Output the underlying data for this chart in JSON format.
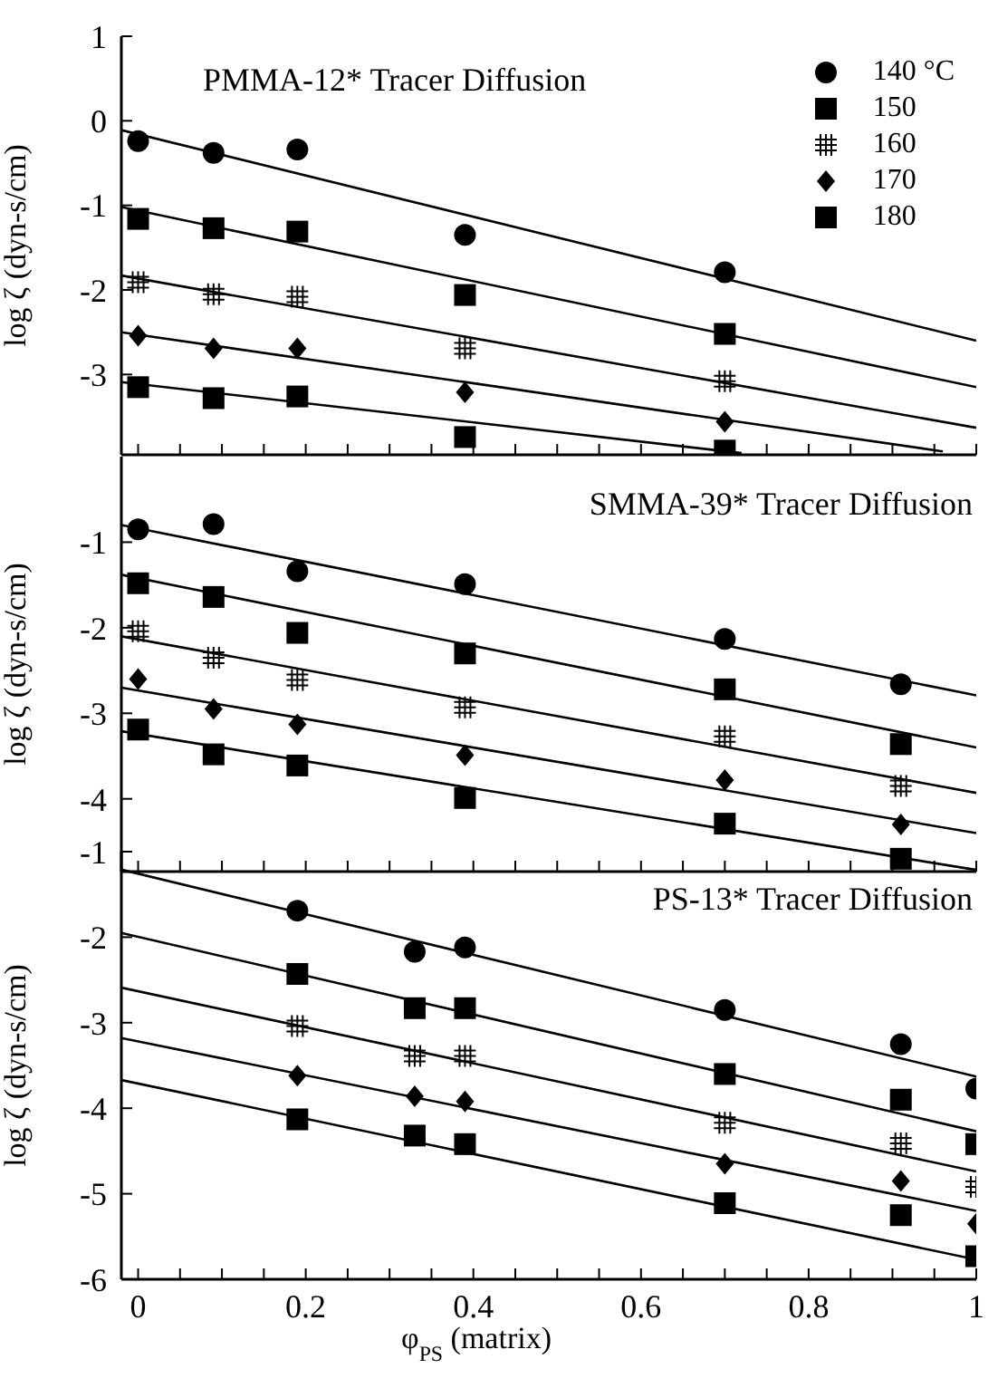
{
  "chart_data": [
    {
      "type": "scatter",
      "title": "PMMA-12* Tracer Diffusion",
      "ylabel": "log ζ (dyn-s/cm)",
      "xlim": [
        -0.02,
        1.0
      ],
      "ylim": [
        -3.95,
        1
      ],
      "xticks": [
        0,
        {
          "value": 0.05,
          "label": null
        },
        {
          "value": 0.1,
          "label": null
        },
        {
          "value": 0.15,
          "label": null
        },
        0.2,
        {
          "value": 0.25,
          "label": null
        },
        {
          "value": 0.3,
          "label": null
        },
        {
          "value": 0.35,
          "label": null
        },
        0.4,
        {
          "value": 0.45,
          "label": null
        },
        {
          "value": 0.5,
          "label": null
        },
        {
          "value": 0.55,
          "label": null
        },
        0.6,
        {
          "value": 0.65,
          "label": null
        },
        {
          "value": 0.7,
          "label": null
        },
        {
          "value": 0.75,
          "label": null
        },
        0.8,
        {
          "value": 0.85,
          "label": null
        },
        {
          "value": 0.9,
          "label": null
        },
        {
          "value": 0.95,
          "label": null
        },
        1
      ],
      "yticks": [
        1,
        0,
        -1,
        -2,
        -3
      ],
      "tick_labels": "y",
      "legend": "top right",
      "grid": false,
      "series": [
        {
          "name": "140 °C",
          "color": "#000000",
          "marker": "circle",
          "x": [
            0,
            0.09,
            0.19,
            0.39,
            0.7
          ],
          "values": [
            -0.24,
            -0.38,
            -0.34,
            -1.35,
            -1.79
          ]
        },
        {
          "name": "150",
          "color": "#000000",
          "marker": "square",
          "x": [
            0,
            0.09,
            0.19,
            0.39,
            0.7
          ],
          "values": [
            -1.16,
            -1.27,
            -1.31,
            -2.06,
            -2.52
          ]
        },
        {
          "name": "160",
          "color": "#000000",
          "marker": "cross",
          "x": [
            0,
            0.09,
            0.19,
            0.39,
            0.7
          ],
          "values": [
            -1.91,
            -2.05,
            -2.08,
            -2.69,
            -3.08
          ]
        },
        {
          "name": "170",
          "color": "#000000",
          "marker": "diamond",
          "x": [
            0,
            0.09,
            0.19,
            0.39,
            0.7
          ],
          "values": [
            -2.54,
            -2.69,
            -2.69,
            -3.21,
            -3.56
          ]
        },
        {
          "name": "180",
          "color": "#000000",
          "marker": "square",
          "x": [
            0,
            0.09,
            0.19,
            0.39,
            0.7
          ],
          "values": [
            -3.15,
            -3.28,
            -3.26,
            -3.74,
            -3.9
          ]
        },
        {
          "type": "line",
          "color": "#000000",
          "x": [
            -0.02,
            1.0
          ],
          "values": [
            -0.11,
            -2.6
          ]
        },
        {
          "type": "line",
          "color": "#000000",
          "x": [
            -0.02,
            1.0
          ],
          "values": [
            -1.02,
            -3.15
          ]
        },
        {
          "type": "line",
          "color": "#000000",
          "x": [
            -0.02,
            1.0
          ],
          "values": [
            -1.83,
            -3.63
          ]
        },
        {
          "type": "line",
          "color": "#000000",
          "x": [
            -0.02,
            0.96
          ],
          "values": [
            -2.5,
            -3.91
          ]
        },
        {
          "type": "line",
          "color": "#000000",
          "x": [
            -0.02,
            0.72
          ],
          "values": [
            -3.09,
            -3.93
          ]
        }
      ]
    },
    {
      "type": "scatter",
      "title": "SMMA-39* Tracer Diffusion",
      "ylabel": "log ζ (dyn-s/cm)",
      "xlim": [
        -0.02,
        1.0
      ],
      "ylim": [
        -4.85,
        0
      ],
      "xticks": [
        0,
        {
          "value": 0.05,
          "label": null
        },
        {
          "value": 0.1,
          "label": null
        },
        {
          "value": 0.15,
          "label": null
        },
        0.2,
        {
          "value": 0.25,
          "label": null
        },
        {
          "value": 0.3,
          "label": null
        },
        {
          "value": 0.35,
          "label": null
        },
        0.4,
        {
          "value": 0.45,
          "label": null
        },
        {
          "value": 0.5,
          "label": null
        },
        {
          "value": 0.55,
          "label": null
        },
        0.6,
        {
          "value": 0.65,
          "label": null
        },
        {
          "value": 0.7,
          "label": null
        },
        {
          "value": 0.75,
          "label": null
        },
        0.8,
        {
          "value": 0.85,
          "label": null
        },
        {
          "value": 0.9,
          "label": null
        },
        {
          "value": 0.95,
          "label": null
        },
        1
      ],
      "yticks": [
        -1,
        -2,
        -3,
        -4
      ],
      "tick_labels": "y",
      "grid": false,
      "series": [
        {
          "color": "#000000",
          "marker": "circle",
          "x": [
            0,
            0.09,
            0.19,
            0.39,
            0.7,
            0.91
          ],
          "values": [
            -0.85,
            -0.79,
            -1.34,
            -1.49,
            -2.13,
            -2.66
          ]
        },
        {
          "color": "#000000",
          "marker": "square",
          "x": [
            0,
            0.09,
            0.19,
            0.39,
            0.7,
            0.91
          ],
          "values": [
            -1.48,
            -1.64,
            -2.06,
            -2.3,
            -2.72,
            -3.36
          ]
        },
        {
          "color": "#000000",
          "marker": "cross",
          "x": [
            0,
            0.09,
            0.19,
            0.39,
            0.7,
            0.91
          ],
          "values": [
            -2.04,
            -2.35,
            -2.61,
            -2.93,
            -3.27,
            -3.85
          ]
        },
        {
          "color": "#000000",
          "marker": "diamond",
          "x": [
            0,
            0.09,
            0.19,
            0.39,
            0.7,
            0.91
          ],
          "values": [
            -2.6,
            -2.95,
            -3.13,
            -3.49,
            -3.78,
            -4.3
          ]
        },
        {
          "color": "#000000",
          "marker": "square",
          "x": [
            0,
            0.09,
            0.19,
            0.39,
            0.7,
            0.91
          ],
          "values": [
            -3.19,
            -3.48,
            -3.61,
            -3.99,
            -4.29,
            -4.7
          ]
        },
        {
          "type": "line",
          "color": "#000000",
          "x": [
            -0.02,
            1.0
          ],
          "values": [
            -0.8,
            -2.79
          ]
        },
        {
          "type": "line",
          "color": "#000000",
          "x": [
            -0.02,
            1.0
          ],
          "values": [
            -1.38,
            -3.4
          ]
        },
        {
          "type": "line",
          "color": "#000000",
          "x": [
            -0.02,
            1.0
          ],
          "values": [
            -2.1,
            -3.93
          ]
        },
        {
          "type": "line",
          "color": "#000000",
          "x": [
            -0.02,
            1.0
          ],
          "values": [
            -2.7,
            -4.4
          ]
        },
        {
          "type": "line",
          "color": "#000000",
          "x": [
            -0.02,
            1.0
          ],
          "values": [
            -3.21,
            -4.83
          ]
        }
      ]
    },
    {
      "type": "scatter",
      "title": "PS-13* Tracer Diffusion",
      "xlabel": "φ$_{PS}$ (matrix)",
      "ylabel": "log ζ (dyn-s/cm)",
      "xlim": [
        -0.02,
        1.0
      ],
      "ylim": [
        -6,
        -1
      ],
      "xticks": [
        0,
        {
          "value": 0.05,
          "label": null
        },
        {
          "value": 0.1,
          "label": null
        },
        {
          "value": 0.15,
          "label": null
        },
        0.2,
        {
          "value": 0.25,
          "label": null
        },
        {
          "value": 0.3,
          "label": null
        },
        {
          "value": 0.35,
          "label": null
        },
        0.4,
        {
          "value": 0.45,
          "label": null
        },
        {
          "value": 0.5,
          "label": null
        },
        {
          "value": 0.55,
          "label": null
        },
        0.6,
        {
          "value": 0.65,
          "label": null
        },
        {
          "value": 0.7,
          "label": null
        },
        {
          "value": 0.75,
          "label": null
        },
        0.8,
        {
          "value": 0.85,
          "label": null
        },
        {
          "value": 0.9,
          "label": null
        },
        {
          "value": 0.95,
          "label": null
        },
        1
      ],
      "yticks": [
        -1,
        -2,
        -3,
        -4,
        -5,
        -6
      ],
      "grid": false,
      "series": [
        {
          "color": "#000000",
          "marker": "circle",
          "x": [
            0.19,
            0.33,
            0.39,
            0.7,
            0.91,
            1.0
          ],
          "values": [
            -1.69,
            -2.17,
            -2.12,
            -2.85,
            -3.25,
            -3.77
          ]
        },
        {
          "color": "#000000",
          "marker": "square",
          "x": [
            0.19,
            0.33,
            0.39,
            0.7,
            0.91,
            1.0
          ],
          "values": [
            -2.43,
            -2.83,
            -2.83,
            -3.6,
            -3.9,
            -4.42
          ]
        },
        {
          "color": "#000000",
          "marker": "cross",
          "x": [
            0.19,
            0.33,
            0.39,
            0.7,
            0.91,
            1.0
          ],
          "values": [
            -3.04,
            -3.39,
            -3.39,
            -4.17,
            -4.41,
            -4.92
          ]
        },
        {
          "color": "#000000",
          "marker": "diamond",
          "x": [
            0.19,
            0.33,
            0.39,
            0.7,
            0.91,
            1.0
          ],
          "values": [
            -3.62,
            -3.86,
            -3.92,
            -4.65,
            -4.85,
            -5.35
          ]
        },
        {
          "color": "#000000",
          "marker": "square",
          "x": [
            0.19,
            0.33,
            0.39,
            0.7,
            0.91,
            1.0
          ],
          "values": [
            -4.13,
            -4.32,
            -4.42,
            -5.11,
            -5.25,
            -5.73
          ]
        },
        {
          "type": "line",
          "color": "#000000",
          "x": [
            -0.02,
            1.0
          ],
          "values": [
            -1.21,
            -3.63
          ]
        },
        {
          "type": "line",
          "color": "#000000",
          "x": [
            -0.02,
            1.0
          ],
          "values": [
            -1.95,
            -4.27
          ]
        },
        {
          "type": "line",
          "color": "#000000",
          "x": [
            -0.02,
            1.0
          ],
          "values": [
            -2.59,
            -4.74
          ]
        },
        {
          "type": "line",
          "color": "#000000",
          "x": [
            -0.02,
            1.0
          ],
          "values": [
            -3.18,
            -5.2
          ]
        },
        {
          "type": "line",
          "color": "#000000",
          "x": [
            -0.02,
            1.0
          ],
          "values": [
            -3.67,
            -5.77
          ]
        }
      ]
    }
  ]
}
